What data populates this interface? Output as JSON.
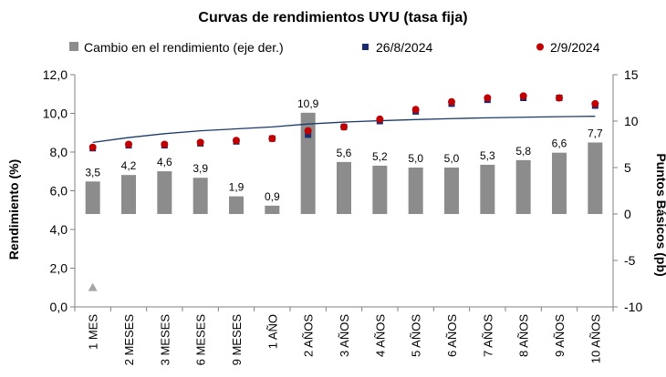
{
  "chart_data": {
    "type": "bar",
    "title": "Curvas de rendimientos UYU (tasa fija)",
    "ylabel_left": "Rendimiento (%)",
    "ylabel_right": "Puntos Básicos (pb)",
    "ylim_left": [
      0,
      12
    ],
    "ylim_right": [
      -10,
      15
    ],
    "yticks_left": [
      "0,0",
      "2,0",
      "4,0",
      "6,0",
      "8,0",
      "10,0",
      "12,0"
    ],
    "yticks_right": [
      "-10",
      "-5",
      "0",
      "5",
      "10",
      "15"
    ],
    "categories": [
      "1 MES",
      "2 MESES",
      "3 MESES",
      "6 MESES",
      "9 MESES",
      "1 AÑO",
      "2 AÑOS",
      "3 AÑOS",
      "4 AÑOS",
      "5 AÑOS",
      "6 AÑOS",
      "7 AÑOS",
      "8 AÑOS",
      "9 AÑOS",
      "10 AÑOS"
    ],
    "series": [
      {
        "name": "Cambio en el rendimiento (eje der.)",
        "kind": "bar",
        "axis": "right",
        "color": "#8c8c8c",
        "values": [
          3.5,
          4.2,
          4.6,
          3.9,
          1.9,
          0.9,
          10.9,
          5.6,
          5.2,
          5.0,
          5.0,
          5.3,
          5.8,
          6.6,
          7.7
        ],
        "labels": [
          "3,5",
          "4,2",
          "4,6",
          "3,9",
          "1,9",
          "0,9",
          "10,9",
          "5,6",
          "5,2",
          "5,0",
          "5,0",
          "5,3",
          "5,8",
          "6,6",
          "7,7"
        ]
      },
      {
        "name": "26/8/2024",
        "kind": "scatter",
        "axis": "left",
        "color": "#1a2a6c",
        "marker": "square",
        "values": [
          8.2,
          8.35,
          8.35,
          8.45,
          8.55,
          8.7,
          8.9,
          9.3,
          9.6,
          10.1,
          10.5,
          10.7,
          10.8,
          10.8,
          10.4
        ]
      },
      {
        "name": "2/9/2024",
        "kind": "scatter",
        "axis": "left",
        "color": "#c00000",
        "marker": "circle",
        "values": [
          8.25,
          8.4,
          8.4,
          8.5,
          8.6,
          8.7,
          9.1,
          9.3,
          9.7,
          10.2,
          10.6,
          10.8,
          10.9,
          10.8,
          10.5
        ]
      }
    ],
    "trendline_left": {
      "color": "#1a3a6c",
      "values": [
        8.5,
        8.75,
        8.95,
        9.1,
        9.2,
        9.3,
        9.45,
        9.55,
        9.62,
        9.68,
        9.73,
        9.77,
        9.8,
        9.83,
        9.85
      ]
    },
    "extra_markers": [
      {
        "category": "1 MES",
        "axis": "right",
        "value": -7.9,
        "shape": "triangle",
        "color": "#a6a6a6"
      }
    ],
    "legend_position": "top",
    "grid": false
  }
}
